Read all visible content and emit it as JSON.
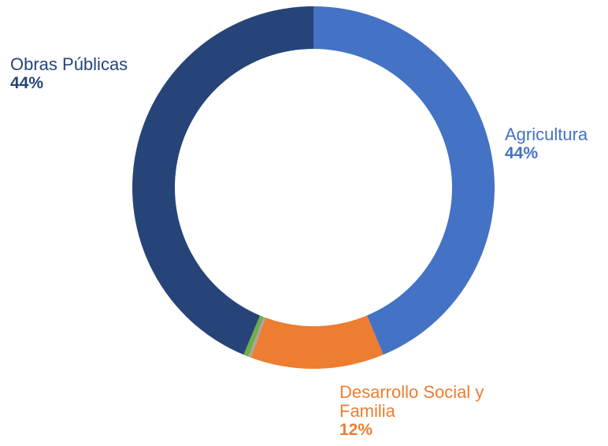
{
  "chart_data": {
    "type": "pie",
    "variant": "donut",
    "start_angle_deg": 0,
    "direction": "clockwise",
    "slices": [
      {
        "name": "Agricultura",
        "value": 44,
        "label": "44%",
        "color": "#4472C4"
      },
      {
        "name": "Desarrollo Social y Familia",
        "value": 12,
        "label": "12%",
        "color": "#ED7D31"
      },
      {
        "name": "",
        "value": 0.25,
        "label": "",
        "color": "#A5A5A5"
      },
      {
        "name": "",
        "value": 0.45,
        "label": "",
        "color": "#70AD47"
      },
      {
        "name": "Obras Públicas",
        "value": 44,
        "label": "44%",
        "color": "#264478"
      }
    ]
  }
}
